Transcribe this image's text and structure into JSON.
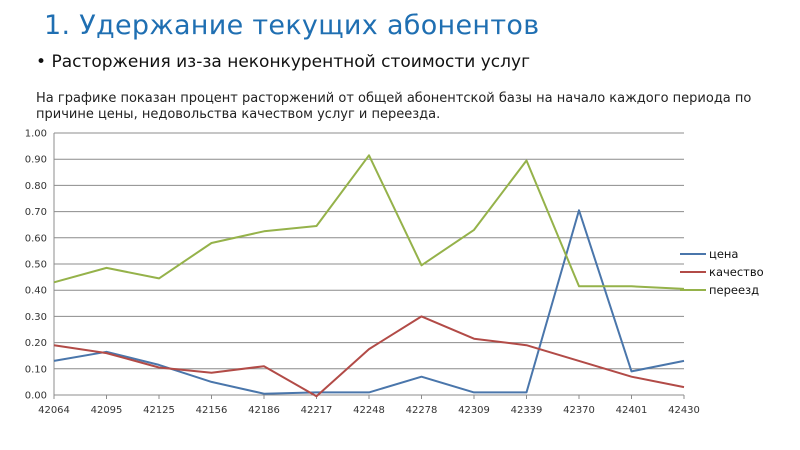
{
  "slide": {
    "title": "1. Удержание текущих абонентов",
    "bullet_marker": "•",
    "bullet_text": "Расторжения из-за неконкурентной стоимости услуг",
    "description": "На графике показан процент расторжений от общей абонентской базы на начало каждого периода по причине цены, недовольства качеством услуг и переезда."
  },
  "chart_data": {
    "type": "line",
    "title": "",
    "xlabel": "",
    "ylabel": "",
    "ylim": [
      0,
      1
    ],
    "grid": true,
    "legend_position": "right",
    "categories": [
      "42064",
      "42095",
      "42125",
      "42156",
      "42186",
      "42217",
      "42248",
      "42278",
      "42309",
      "42339",
      "42370",
      "42401",
      "42430"
    ],
    "y_ticks": [
      "0.00",
      "0.10",
      "0.20",
      "0.30",
      "0.40",
      "0.50",
      "0.60",
      "0.70",
      "0.80",
      "0.90",
      "1.00"
    ],
    "series": [
      {
        "name": "цена",
        "color": "#4a76ab",
        "values": [
          0.13,
          0.165,
          0.115,
          0.05,
          0.005,
          0.01,
          0.01,
          0.07,
          0.01,
          0.01,
          0.705,
          0.09,
          0.13
        ]
      },
      {
        "name": "качество",
        "color": "#b24b47",
        "values": [
          0.19,
          0.16,
          0.105,
          0.085,
          0.11,
          -0.005,
          0.175,
          0.3,
          0.215,
          0.19,
          0.13,
          0.07,
          0.03
        ]
      },
      {
        "name": "переезд",
        "color": "#95b24a",
        "values": [
          0.43,
          0.485,
          0.445,
          0.58,
          0.625,
          0.645,
          0.915,
          0.495,
          0.63,
          0.895,
          0.415,
          0.415,
          0.405
        ]
      }
    ]
  }
}
